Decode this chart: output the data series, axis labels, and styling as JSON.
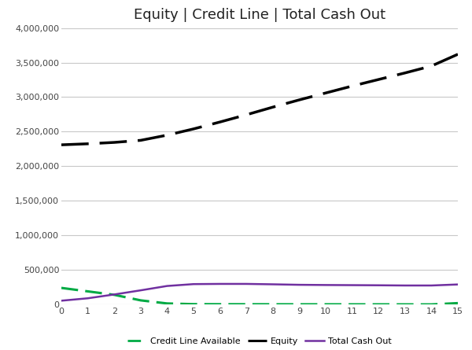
{
  "title": "Equity | Credit Line | Total Cash Out",
  "x_values": [
    0,
    1,
    2,
    3,
    4,
    5,
    6,
    7,
    8,
    9,
    10,
    11,
    12,
    13,
    14,
    15
  ],
  "equity": [
    2310000,
    2325000,
    2345000,
    2375000,
    2450000,
    2540000,
    2640000,
    2745000,
    2855000,
    2960000,
    3060000,
    3160000,
    3255000,
    3350000,
    3450000,
    3620000
  ],
  "credit_line": [
    240000,
    190000,
    140000,
    60000,
    15000,
    5000,
    4000,
    3500,
    3000,
    2500,
    2500,
    2000,
    2000,
    1500,
    1000,
    20000
  ],
  "total_cash_out": [
    55000,
    90000,
    145000,
    205000,
    268000,
    295000,
    298000,
    298000,
    292000,
    285000,
    282000,
    280000,
    278000,
    275000,
    275000,
    290000
  ],
  "equity_color": "#000000",
  "credit_line_color": "#00AA44",
  "total_cash_out_color": "#7030A0",
  "background_color": "#ffffff",
  "grid_color": "#c8c8c8",
  "ylim": [
    0,
    4000000
  ],
  "xlim": [
    0,
    15
  ],
  "yticks": [
    0,
    500000,
    1000000,
    1500000,
    2000000,
    2500000,
    3000000,
    3500000,
    4000000
  ],
  "xticks": [
    0,
    1,
    2,
    3,
    4,
    5,
    6,
    7,
    8,
    9,
    10,
    11,
    12,
    13,
    14,
    15
  ],
  "legend_labels": [
    "Credit Line Available",
    "Equity",
    "Total Cash Out"
  ],
  "title_fontsize": 13,
  "tick_fontsize": 8,
  "legend_fontsize": 8
}
